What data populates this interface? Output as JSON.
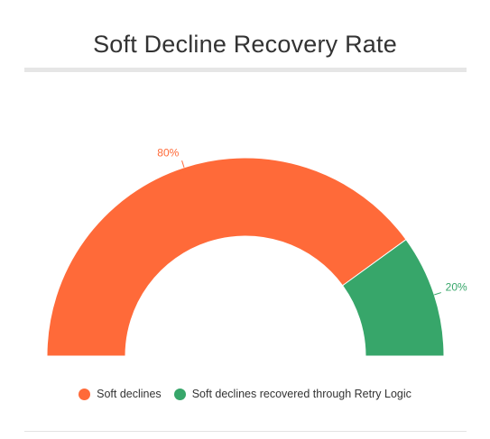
{
  "header": {
    "title": "Soft Decline Recovery Rate"
  },
  "chart_data": {
    "type": "pie",
    "variant": "semi-donut",
    "title": "Soft Decline Recovery Rate",
    "categories": [
      "Soft declines",
      "Soft declines recovered through Retry Logic"
    ],
    "values": [
      80,
      20
    ],
    "unit": "%",
    "data_labels": [
      "80%",
      "20%"
    ],
    "colors": [
      "#ff6a39",
      "#37a66a"
    ],
    "legend": "bottom-center"
  }
}
